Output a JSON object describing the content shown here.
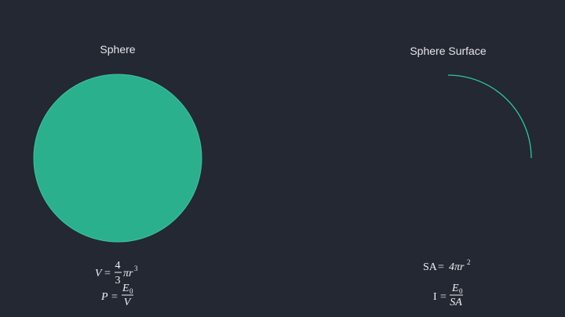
{
  "left": {
    "title": "Sphere",
    "volume": {
      "lhs": "V",
      "eq": "=",
      "num": "4",
      "den": "3",
      "rest": "πr",
      "exp": "3"
    },
    "power": {
      "lhs": "P",
      "eq": "=",
      "num": "E",
      "num_sub": "0",
      "den": "V"
    }
  },
  "right": {
    "title": "Sphere Surface",
    "area": {
      "lhs": "SA",
      "eq": "=",
      "rhs": "4πr",
      "exp": "2"
    },
    "intensity": {
      "lhs": "I",
      "eq": "=",
      "num": "E",
      "num_sub": "0",
      "den": "SA"
    }
  }
}
